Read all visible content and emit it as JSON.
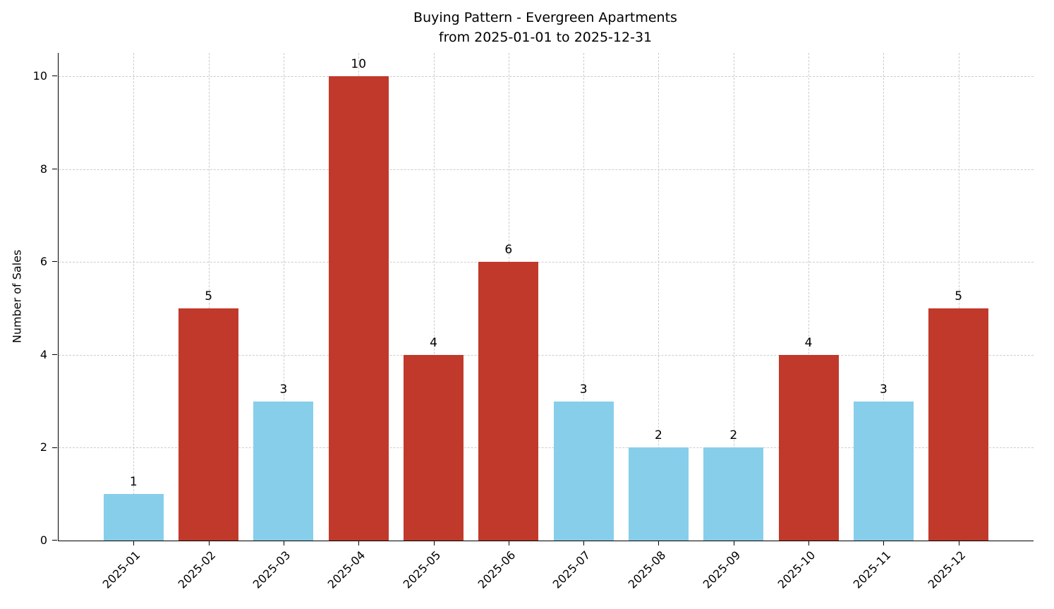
{
  "chart_data": {
    "type": "bar",
    "title": "Buying Pattern - Evergreen Apartments",
    "subtitle": "from 2025-01-01 to 2025-12-31",
    "ylabel": "Number of Sales",
    "xlabel": "",
    "categories": [
      "2025-01",
      "2025-02",
      "2025-03",
      "2025-04",
      "2025-05",
      "2025-06",
      "2025-07",
      "2025-08",
      "2025-09",
      "2025-10",
      "2025-11",
      "2025-12"
    ],
    "values": [
      1,
      5,
      3,
      10,
      4,
      6,
      3,
      2,
      2,
      4,
      3,
      5
    ],
    "bar_colors": [
      "#87ceeb",
      "#c0392b",
      "#87ceeb",
      "#c0392b",
      "#c0392b",
      "#c0392b",
      "#87ceeb",
      "#87ceeb",
      "#87ceeb",
      "#c0392b",
      "#87ceeb",
      "#c0392b"
    ],
    "colors": {
      "low_bar": "#87ceeb",
      "high_bar": "#c0392b",
      "grid": "#cccccc",
      "axis": "#000000"
    },
    "yticks": [
      0,
      2,
      4,
      6,
      8,
      10
    ],
    "ylim": [
      0,
      10.5
    ],
    "grid": true,
    "grid_style": "dashed",
    "legend": "none",
    "xtick_rotation_deg": 45
  }
}
